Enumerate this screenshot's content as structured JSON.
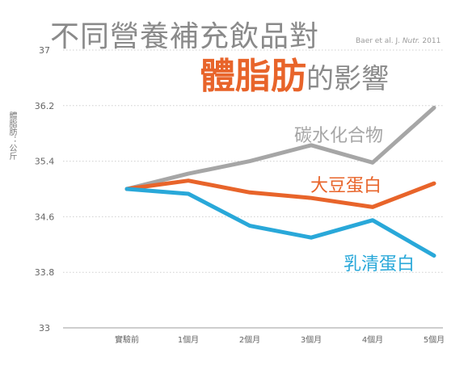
{
  "title": {
    "line1": "不同營養補充飲品對",
    "highlight": "體脂肪",
    "rest": "的影響"
  },
  "source": {
    "prefix": "Baer et al. J. ",
    "journal": "Nutr.",
    "year": " 2011"
  },
  "chart_data": {
    "type": "line",
    "categories": [
      "實驗前",
      "1個月",
      "2個月",
      "3個月",
      "4個月",
      "5個月"
    ],
    "y_ticks": [
      "37",
      "36.2",
      "35.4",
      "34.6",
      "33.8",
      "33"
    ],
    "ylabel": "體脂肪：公斤",
    "xlabel": "",
    "ylim": [
      33,
      37
    ],
    "grid": true,
    "legend": "inline labels next to lines",
    "series": [
      {
        "name": "碳水化合物",
        "color": "#a6a6a6",
        "x": [
          0,
          1,
          2,
          3,
          4,
          5
        ],
        "values": [
          35.0,
          35.22,
          35.4,
          35.63,
          35.38,
          36.17
        ]
      },
      {
        "name": "大豆蛋白",
        "color": "#e8642a",
        "x": [
          0,
          1,
          2,
          3,
          4,
          5
        ],
        "values": [
          35.0,
          35.12,
          34.95,
          34.87,
          34.74,
          35.08
        ]
      },
      {
        "name": "乳清蛋白",
        "color": "#29a8d9",
        "x": [
          0,
          1,
          2,
          3,
          4,
          5
        ],
        "values": [
          35.0,
          34.93,
          34.47,
          34.3,
          34.55,
          34.04
        ]
      }
    ]
  }
}
